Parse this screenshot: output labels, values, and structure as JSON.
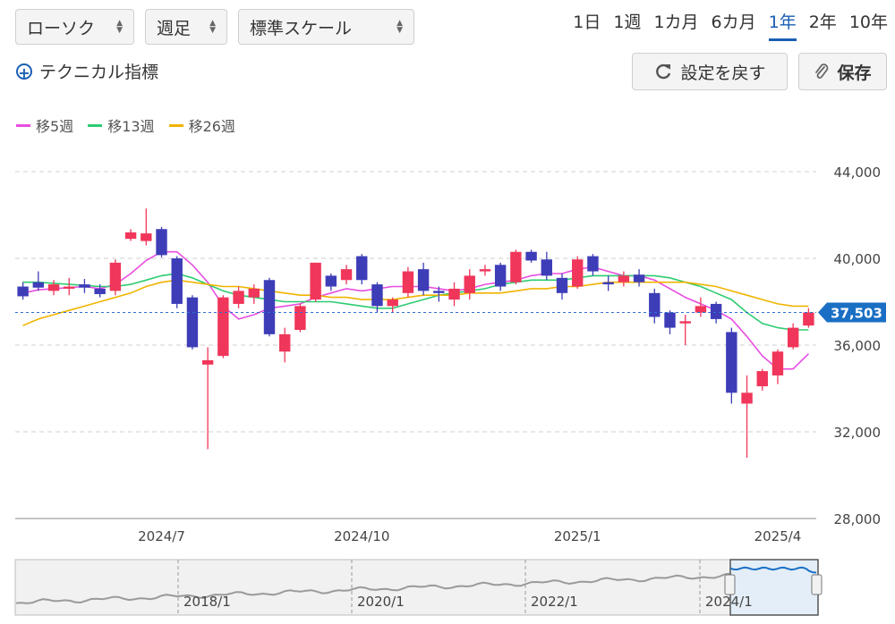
{
  "toolbar": {
    "chart_type": "ローソク",
    "interval": "週足",
    "scale": "標準スケール",
    "periods": [
      "1日",
      "1週",
      "1カ月",
      "6カ月",
      "1年",
      "2年",
      "10年"
    ],
    "active_period": "1年",
    "technical_label": "テクニカル指標",
    "reset_label": "設定を戻す",
    "save_label": "保存"
  },
  "legend": [
    {
      "label": "移5週",
      "color": "#e84de0"
    },
    {
      "label": "移13週",
      "color": "#2ecc71"
    },
    {
      "label": "移26週",
      "color": "#f0b400"
    }
  ],
  "colors": {
    "up": "#f0365a",
    "down": "#3d3db8",
    "accent": "#1a6fc4"
  },
  "navigator_labels": [
    "2018/1",
    "2020/1",
    "2022/1",
    "2024/1"
  ],
  "chart_data": {
    "type": "candlestick",
    "title": "",
    "xlabel": "",
    "ylabel": "",
    "ylim": [
      28000,
      44000
    ],
    "yticks": [
      "44,000",
      "40,000",
      "36,000",
      "32,000",
      "28,000"
    ],
    "xticks": [
      {
        "label": "2024/7",
        "index": 9
      },
      {
        "label": "2024/10",
        "index": 22
      },
      {
        "label": "2025/1",
        "index": 36
      },
      {
        "label": "2025/4",
        "index": 49
      }
    ],
    "last_price": 37503,
    "last_price_label": "37,503",
    "candles": [
      [
        38700,
        38250,
        38900,
        38100
      ],
      [
        38900,
        38650,
        39400,
        38500
      ],
      [
        38500,
        38800,
        39000,
        38300
      ],
      [
        38600,
        38700,
        39100,
        38300
      ],
      [
        38800,
        38650,
        39050,
        38400
      ],
      [
        38600,
        38350,
        38800,
        38200
      ],
      [
        38500,
        39800,
        39950,
        38300
      ],
      [
        40900,
        41200,
        41350,
        40800
      ],
      [
        40800,
        41150,
        42300,
        40600
      ],
      [
        41350,
        40150,
        41450,
        40050
      ],
      [
        40000,
        37900,
        40100,
        37700
      ],
      [
        38200,
        35900,
        38300,
        35800
      ],
      [
        35100,
        35300,
        35900,
        31200
      ],
      [
        35500,
        38200,
        38300,
        35400
      ],
      [
        37900,
        38500,
        38700,
        37700
      ],
      [
        38200,
        38600,
        38800,
        37900
      ],
      [
        39000,
        36500,
        39100,
        36400
      ],
      [
        35700,
        36500,
        36800,
        35200
      ],
      [
        36700,
        37800,
        37900,
        36600
      ],
      [
        38100,
        39800,
        39800,
        38000
      ],
      [
        39200,
        38700,
        39300,
        38500
      ],
      [
        39000,
        39500,
        39700,
        38800
      ],
      [
        40100,
        39000,
        40200,
        38800
      ],
      [
        38800,
        37800,
        38900,
        37500
      ],
      [
        37800,
        38100,
        38200,
        37500
      ],
      [
        38400,
        39400,
        39600,
        38200
      ],
      [
        39500,
        38500,
        39800,
        38300
      ],
      [
        38500,
        38400,
        38700,
        38000
      ],
      [
        38100,
        38600,
        38900,
        37800
      ],
      [
        38400,
        39200,
        39500,
        38100
      ],
      [
        39400,
        39500,
        39700,
        39200
      ],
      [
        39700,
        38700,
        39800,
        38500
      ],
      [
        38900,
        40300,
        40400,
        38800
      ],
      [
        40300,
        39900,
        40400,
        39800
      ],
      [
        39950,
        39200,
        40300,
        39000
      ],
      [
        39100,
        38400,
        39300,
        38100
      ],
      [
        38700,
        39950,
        40100,
        38600
      ],
      [
        40100,
        39400,
        40200,
        39200
      ],
      [
        38900,
        38800,
        39200,
        38500
      ],
      [
        38900,
        39200,
        39400,
        38700
      ],
      [
        39250,
        38900,
        39500,
        38700
      ],
      [
        38400,
        37300,
        38600,
        37000
      ],
      [
        37500,
        36800,
        37600,
        36500
      ],
      [
        37000,
        37100,
        37400,
        36000
      ],
      [
        37500,
        37800,
        38200,
        37300
      ],
      [
        37900,
        37200,
        38000,
        37000
      ],
      [
        36600,
        33800,
        36800,
        33300
      ],
      [
        33300,
        33800,
        34600,
        30800
      ],
      [
        34100,
        34800,
        34900,
        33900
      ],
      [
        34600,
        35700,
        35800,
        34200
      ],
      [
        35900,
        36800,
        37000,
        35800
      ],
      [
        36900,
        37503,
        37700,
        36800
      ]
    ],
    "series": [
      {
        "name": "移5週",
        "color": "#e84de0",
        "values": [
          38400,
          38550,
          38600,
          38650,
          38700,
          38600,
          38800,
          39300,
          39900,
          40300,
          40300,
          39700,
          38900,
          37800,
          37200,
          37400,
          37700,
          37800,
          37900,
          38200,
          38400,
          38600,
          38500,
          38600,
          38700,
          38700,
          38700,
          38600,
          38500,
          38600,
          38800,
          38900,
          39000,
          39200,
          39300,
          39300,
          39500,
          39600,
          39400,
          39200,
          39200,
          39000,
          38600,
          38200,
          37900,
          37600,
          37200,
          36400,
          35500,
          34900,
          34900,
          35600
        ]
      },
      {
        "name": "移13週",
        "color": "#2ecc71",
        "values": [
          38900,
          38900,
          38850,
          38800,
          38750,
          38700,
          38700,
          38800,
          39000,
          39200,
          39300,
          39100,
          38800,
          38500,
          38300,
          38200,
          38100,
          38000,
          38000,
          38000,
          38000,
          37900,
          37800,
          37700,
          37700,
          37900,
          38100,
          38300,
          38400,
          38500,
          38600,
          38800,
          38900,
          39000,
          39000,
          39000,
          39100,
          39200,
          39200,
          39200,
          39200,
          39200,
          39100,
          38900,
          38700,
          38400,
          38100,
          37500,
          37000,
          36800,
          36700,
          36700
        ]
      },
      {
        "name": "移26週",
        "color": "#f0b400",
        "values": [
          36900,
          37200,
          37400,
          37600,
          37800,
          38000,
          38200,
          38400,
          38700,
          38900,
          39000,
          38900,
          38800,
          38700,
          38700,
          38600,
          38500,
          38400,
          38300,
          38300,
          38200,
          38200,
          38100,
          38100,
          38100,
          38200,
          38300,
          38300,
          38300,
          38400,
          38400,
          38400,
          38500,
          38600,
          38600,
          38700,
          38700,
          38800,
          38900,
          38900,
          38900,
          38900,
          38900,
          38900,
          38800,
          38700,
          38500,
          38300,
          38100,
          37900,
          37800,
          37800
        ]
      }
    ]
  }
}
